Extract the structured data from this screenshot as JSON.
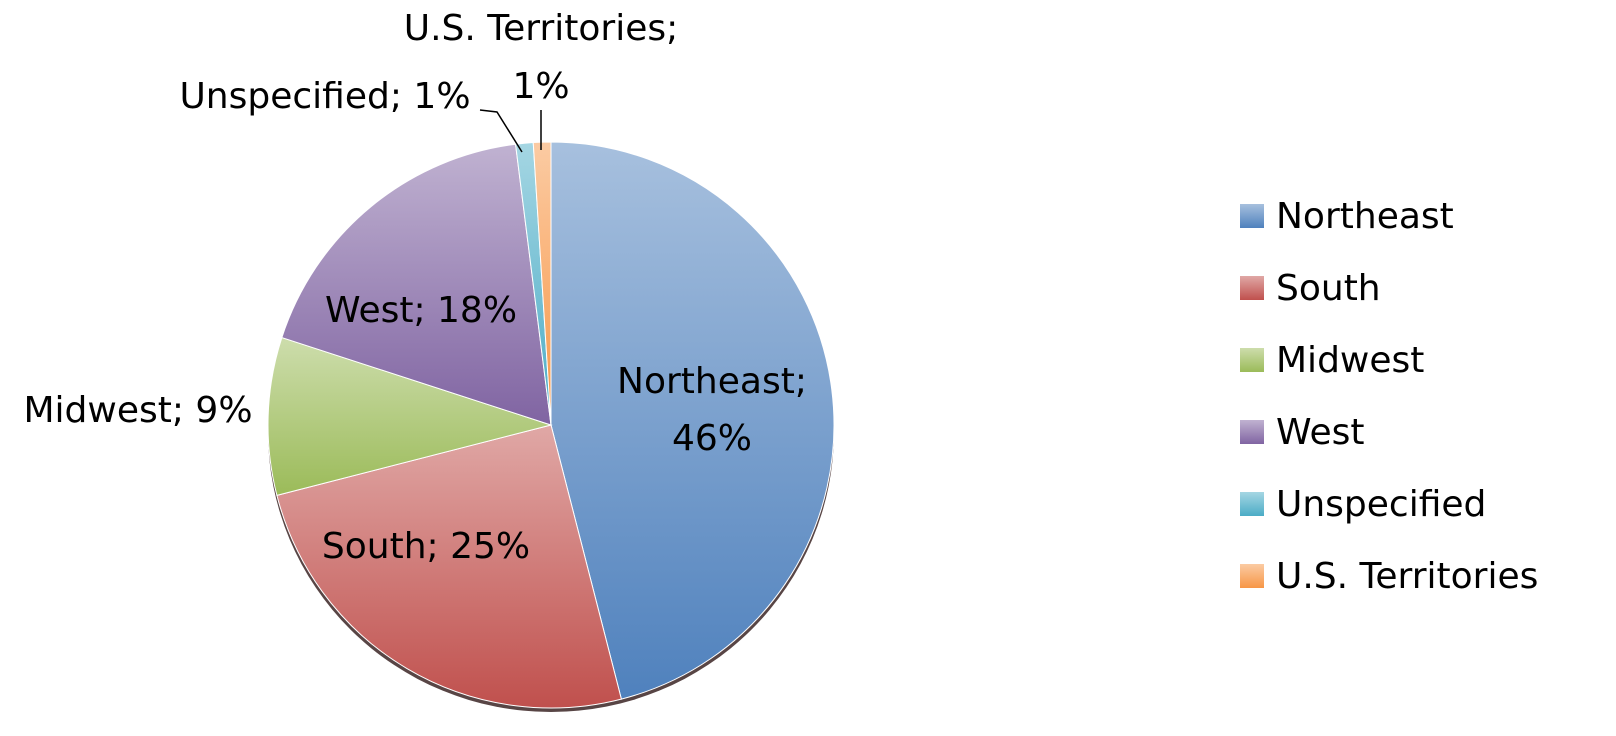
{
  "chart_data": {
    "type": "pie",
    "categories": [
      "Northeast",
      "South",
      "Midwest",
      "West",
      "Unspecified",
      "U.S. Territories"
    ],
    "values": [
      46,
      25,
      9,
      18,
      1,
      1
    ],
    "value_labels": [
      "Northeast; 46%",
      "South; 25%",
      "Midwest; 9%",
      "West; 18%",
      "Unspecified; 1%",
      "U.S. Territories; 1%"
    ],
    "colors": [
      "#4f81bd",
      "#c0504d",
      "#9bbb59",
      "#8064a2",
      "#4bacc6",
      "#f79646"
    ],
    "legend": "right"
  }
}
